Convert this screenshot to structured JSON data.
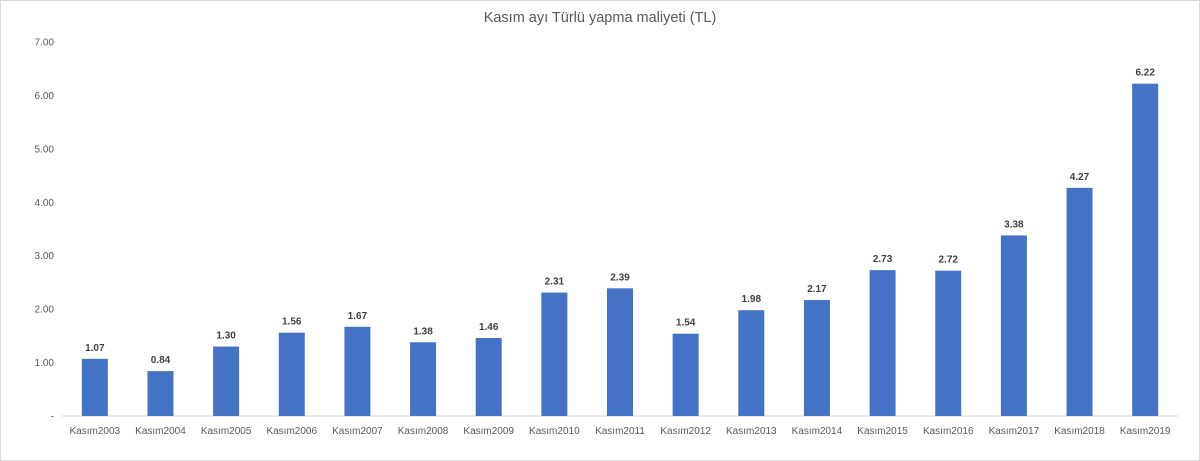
{
  "chart_data": {
    "type": "bar",
    "title": "Kasım ayı Türlü yapma maliyeti (TL)",
    "xlabel": "",
    "ylabel": "",
    "ylim": [
      0,
      7
    ],
    "y_ticks": [
      "-",
      "1.00",
      "2.00",
      "3.00",
      "4.00",
      "5.00",
      "6.00",
      "7.00"
    ],
    "categories": [
      "Kasım2003",
      "Kasım2004",
      "Kasım2005",
      "Kasım2006",
      "Kasım2007",
      "Kasım2008",
      "Kasım2009",
      "Kasım2010",
      "Kasım2011",
      "Kasım2012",
      "Kasım2013",
      "Kasım2014",
      "Kasım2015",
      "Kasım2016",
      "Kasım2017",
      "Kasım2018",
      "Kasım2019"
    ],
    "values": [
      1.07,
      0.84,
      1.3,
      1.56,
      1.67,
      1.38,
      1.46,
      2.31,
      2.39,
      1.54,
      1.98,
      2.17,
      2.73,
      2.72,
      3.38,
      4.27,
      6.22
    ],
    "data_labels": [
      "1.07",
      "0.84",
      "1.30",
      "1.56",
      "1.67",
      "1.38",
      "1.46",
      "2.31",
      "2.39",
      "1.54",
      "1.98",
      "2.17",
      "2.73",
      "2.72",
      "3.38",
      "4.27",
      "6.22"
    ],
    "bar_color": "#4472C4",
    "grid": false,
    "legend": "none"
  }
}
